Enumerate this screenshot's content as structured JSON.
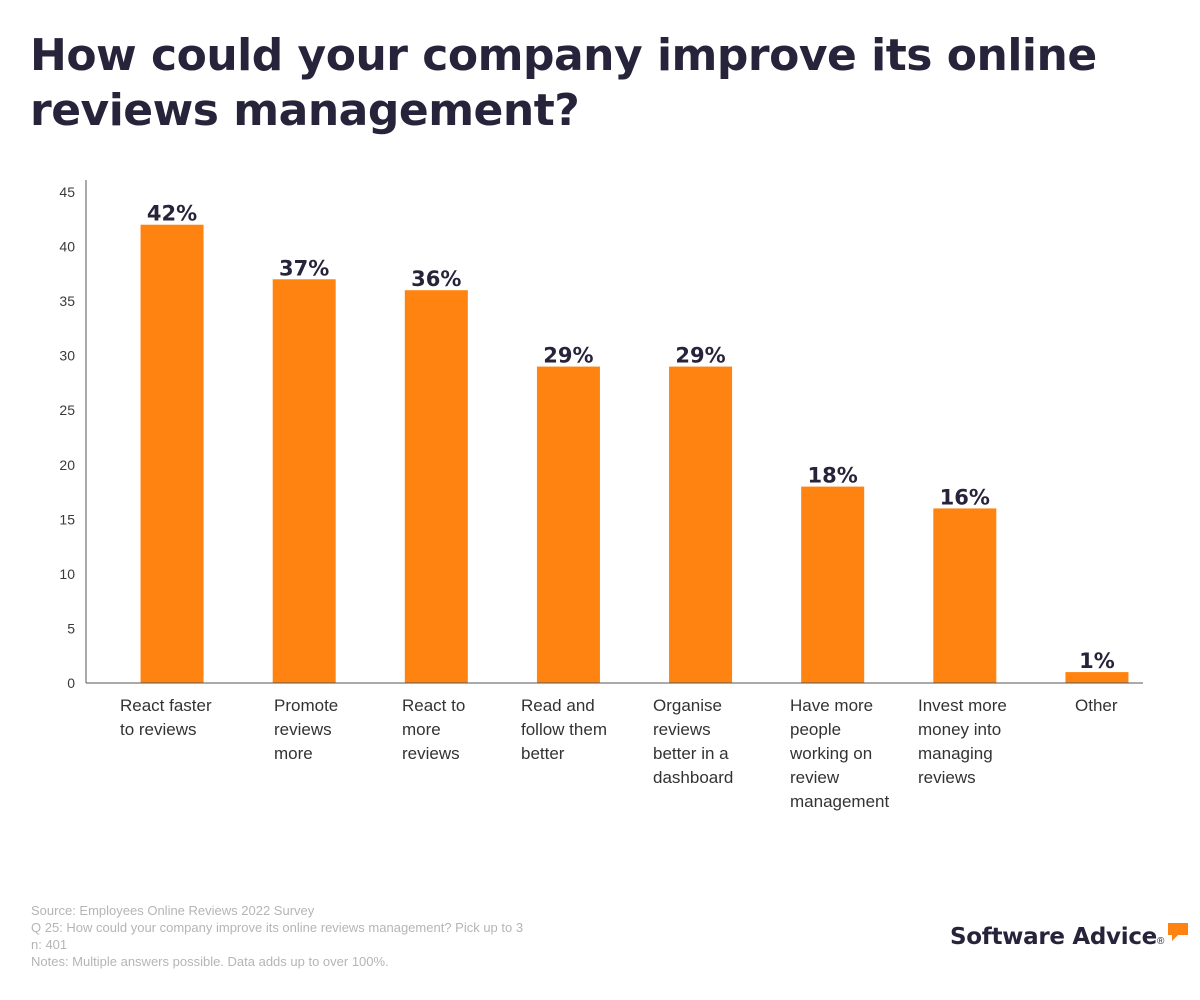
{
  "chart_data": {
    "type": "bar",
    "title": "How could your company improve its online reviews management?",
    "categories": [
      [
        "React faster",
        "to reviews"
      ],
      [
        "Promote",
        "reviews",
        "more"
      ],
      [
        "React to",
        "more",
        "reviews"
      ],
      [
        "Read and",
        "follow them",
        "better"
      ],
      [
        "Organise",
        "reviews",
        "better in a",
        "dashboard"
      ],
      [
        "Have more",
        "people",
        "working on",
        "review",
        "management"
      ],
      [
        "Invest more",
        "money into",
        "managing",
        "reviews"
      ],
      [
        "Other"
      ]
    ],
    "values": [
      42,
      37,
      36,
      29,
      29,
      18,
      16,
      1
    ],
    "value_labels": [
      "42%",
      "37%",
      "36%",
      "29%",
      "29%",
      "18%",
      "16%",
      "1%"
    ],
    "yticks": [
      "0",
      "5",
      "10",
      "15",
      "20",
      "25",
      "30",
      "35",
      "40",
      "45"
    ],
    "ylim": [
      0,
      45
    ],
    "xlabel": "",
    "ylabel": "",
    "bar_color": "#ff8310",
    "label_color": "#27233a",
    "grid": false
  },
  "footer": {
    "source": "Source: Employees Online Reviews 2022 Survey",
    "question": "Q 25: How could your company improve its online reviews management? Pick up to 3",
    "sample": "n: 401",
    "notes": "Notes: Multiple answers possible. Data adds up to over 100%."
  },
  "brand": {
    "name": "Software Advice",
    "mark": "®",
    "accent_color": "#ff8310"
  }
}
